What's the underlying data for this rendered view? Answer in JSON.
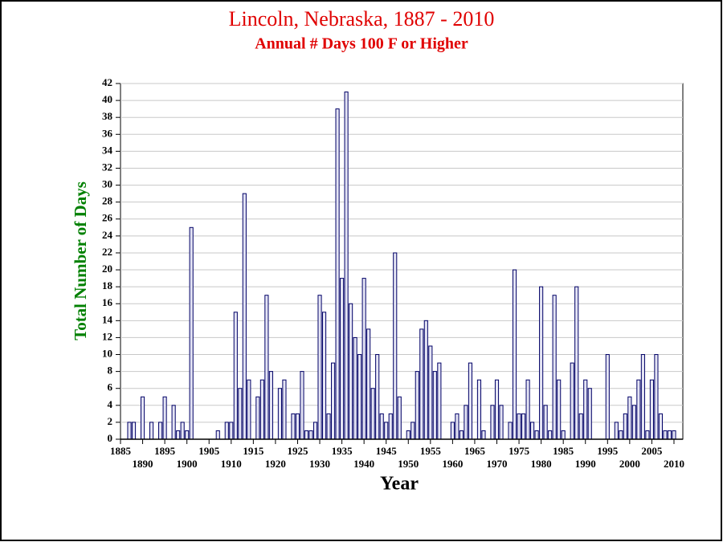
{
  "chart_data": {
    "type": "bar",
    "title": "Lincoln, Nebraska, 1887 - 2010",
    "subtitle": "Annual # Days 100 F or Higher",
    "x_label": "Year",
    "y_label": "Total Number of Days",
    "x": [
      1887,
      1888,
      1889,
      1890,
      1891,
      1892,
      1893,
      1894,
      1895,
      1896,
      1897,
      1898,
      1899,
      1900,
      1901,
      1902,
      1903,
      1904,
      1905,
      1906,
      1907,
      1908,
      1909,
      1910,
      1911,
      1912,
      1913,
      1914,
      1915,
      1916,
      1917,
      1918,
      1919,
      1920,
      1921,
      1922,
      1923,
      1924,
      1925,
      1926,
      1927,
      1928,
      1929,
      1930,
      1931,
      1932,
      1933,
      1934,
      1935,
      1936,
      1937,
      1938,
      1939,
      1940,
      1941,
      1942,
      1943,
      1944,
      1945,
      1946,
      1947,
      1948,
      1949,
      1950,
      1951,
      1952,
      1953,
      1954,
      1955,
      1956,
      1957,
      1958,
      1959,
      1960,
      1961,
      1962,
      1963,
      1964,
      1965,
      1966,
      1967,
      1968,
      1969,
      1970,
      1971,
      1972,
      1973,
      1974,
      1975,
      1976,
      1977,
      1978,
      1979,
      1980,
      1981,
      1982,
      1983,
      1984,
      1985,
      1986,
      1987,
      1988,
      1989,
      1990,
      1991,
      1992,
      1993,
      1994,
      1995,
      1996,
      1997,
      1998,
      1999,
      2000,
      2001,
      2002,
      2003,
      2004,
      2005,
      2006,
      2007,
      2008,
      2009,
      2010
    ],
    "values": [
      2,
      2,
      0,
      5,
      0,
      2,
      0,
      2,
      5,
      0,
      4,
      1,
      2,
      1,
      25,
      0,
      0,
      0,
      0,
      0,
      1,
      0,
      2,
      2,
      15,
      6,
      29,
      7,
      0,
      5,
      7,
      17,
      8,
      0,
      6,
      7,
      0,
      3,
      3,
      8,
      1,
      1,
      2,
      17,
      15,
      3,
      9,
      39,
      19,
      41,
      16,
      12,
      10,
      19,
      13,
      6,
      10,
      3,
      2,
      3,
      22,
      5,
      0,
      1,
      2,
      8,
      13,
      14,
      11,
      8,
      9,
      0,
      0,
      2,
      3,
      1,
      4,
      9,
      0,
      7,
      1,
      0,
      4,
      7,
      4,
      0,
      2,
      20,
      3,
      3,
      7,
      2,
      1,
      18,
      4,
      1,
      17,
      7,
      1,
      0,
      9,
      18,
      3,
      7,
      6,
      0,
      0,
      0,
      10,
      0,
      2,
      1,
      3,
      5,
      4,
      7,
      10,
      1,
      7,
      10,
      3,
      1,
      1,
      1
    ],
    "color": "#e4e4f4",
    "edge_color": "#000066",
    "xlim": [
      1885,
      2012
    ],
    "xticks": [
      1885,
      1890,
      1895,
      1900,
      1905,
      1910,
      1915,
      1920,
      1925,
      1930,
      1935,
      1940,
      1945,
      1950,
      1955,
      1960,
      1965,
      1970,
      1975,
      1980,
      1985,
      1990,
      1995,
      2000,
      2005,
      2010
    ],
    "ylim": [
      0,
      42
    ],
    "yticks": [
      0,
      2,
      4,
      6,
      8,
      10,
      12,
      14,
      16,
      18,
      20,
      22,
      24,
      26,
      28,
      30,
      32,
      34,
      36,
      38,
      40,
      42
    ],
    "grid": true
  }
}
